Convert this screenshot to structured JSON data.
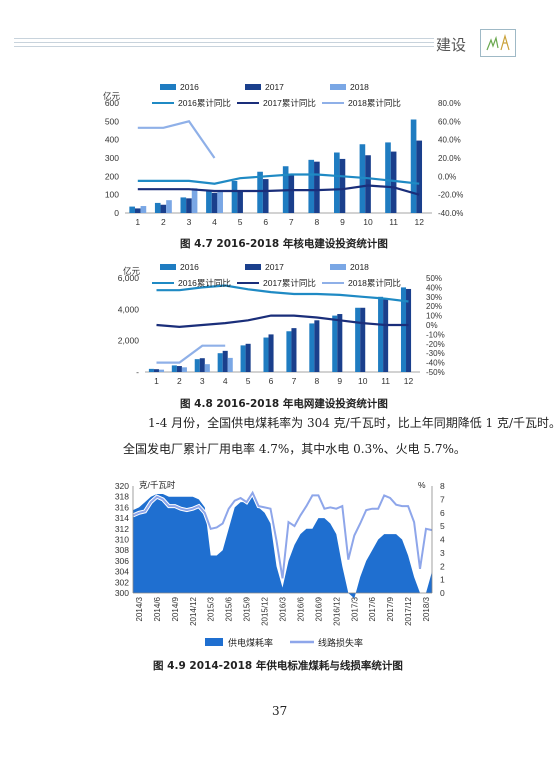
{
  "header": {
    "section_title": "建设"
  },
  "body_text": {
    "line1": "1-4 月份，全国供电煤耗率为 304 克/千瓦时，比上年同期降低 1 克/千瓦时。",
    "line2": "全国发电厂累计厂用电率 4.7%，其中水电 0.3%、火电 5.7%。"
  },
  "page_number": "37",
  "chart_data": [
    {
      "type": "bar",
      "title": "图 4.7   2016-2018 年核电建设投资统计图",
      "ylabel": "亿元",
      "categories": [
        "1",
        "2",
        "3",
        "4",
        "5",
        "6",
        "7",
        "8",
        "9",
        "10",
        "11",
        "12"
      ],
      "ylim": [
        0,
        600
      ],
      "yticks": [
        "0",
        "100",
        "200",
        "300",
        "400",
        "500",
        "600"
      ],
      "y2lim": [
        -40,
        80
      ],
      "y2ticks": [
        "-40.0%",
        "-20.0%",
        "0.0%",
        "20.0%",
        "40.0%",
        "60.0%",
        "80.0%"
      ],
      "series": [
        {
          "name": "2016",
          "kind": "bar",
          "color": "#1f7cc1",
          "values": [
            35,
            55,
            85,
            120,
            175,
            225,
            255,
            290,
            330,
            375,
            385,
            510
          ]
        },
        {
          "name": "2017",
          "kind": "bar",
          "color": "#1a3f8c",
          "values": [
            25,
            45,
            80,
            110,
            125,
            185,
            215,
            280,
            295,
            315,
            335,
            395
          ]
        },
        {
          "name": "2018",
          "kind": "bar",
          "color": "#7aa7e5",
          "values": [
            38,
            70,
            135,
            125,
            null,
            null,
            null,
            null,
            null,
            null,
            null,
            null
          ]
        },
        {
          "name": "2016累计同比",
          "kind": "line",
          "axis": "right",
          "color": "#1f8ac4",
          "values": [
            -5,
            -5,
            -5,
            -8,
            -2,
            0,
            2,
            2,
            0,
            -2,
            -5,
            -8
          ]
        },
        {
          "name": "2017累计同比",
          "kind": "line",
          "axis": "right",
          "color": "#1a2e7a",
          "values": [
            -14,
            -14,
            -14,
            -16,
            -16,
            -16,
            -15,
            -15,
            -14,
            -10,
            -12,
            -20
          ]
        },
        {
          "name": "2018累计同比",
          "kind": "line",
          "axis": "right",
          "color": "#8fb0e8",
          "values": [
            53,
            53,
            60,
            20,
            null,
            null,
            null,
            null,
            null,
            null,
            null,
            null
          ]
        }
      ]
    },
    {
      "type": "bar",
      "title": "图 4.8   2016-2018 年电网建设投资统计图",
      "ylabel": "亿元",
      "categories": [
        "1",
        "2",
        "3",
        "4",
        "5",
        "6",
        "7",
        "8",
        "9",
        "10",
        "11",
        "12"
      ],
      "ylim": [
        0,
        6000
      ],
      "yticks": [
        "-",
        "2,000",
        "4,000",
        "6,000"
      ],
      "y2lim": [
        -50,
        50
      ],
      "y2ticks": [
        "-50%",
        "-40%",
        "-30%",
        "-20%",
        "-10%",
        "0%",
        "10%",
        "20%",
        "30%",
        "40%",
        "50%"
      ],
      "series": [
        {
          "name": "2016",
          "kind": "bar",
          "color": "#1f7cc1",
          "values": [
            200,
            420,
            820,
            1200,
            1700,
            2200,
            2600,
            3100,
            3600,
            4100,
            4800,
            5400
          ]
        },
        {
          "name": "2017",
          "kind": "bar",
          "color": "#1a3f8c",
          "values": [
            180,
            380,
            880,
            1350,
            1800,
            2400,
            2800,
            3300,
            3700,
            4100,
            4700,
            5300
          ]
        },
        {
          "name": "2018",
          "kind": "bar",
          "color": "#7aa7e5",
          "values": [
            150,
            300,
            500,
            900,
            null,
            null,
            null,
            null,
            null,
            null,
            null,
            null
          ]
        },
        {
          "name": "2016累计同比",
          "kind": "line",
          "axis": "right",
          "color": "#1f8ac4",
          "values": [
            37,
            37,
            40,
            42,
            38,
            35,
            33,
            33,
            32,
            30,
            28,
            25
          ]
        },
        {
          "name": "2017累计同比",
          "kind": "line",
          "axis": "right",
          "color": "#1a2e7a",
          "values": [
            0,
            -2,
            0,
            2,
            5,
            10,
            10,
            8,
            5,
            2,
            0,
            0
          ]
        },
        {
          "name": "2018累计同比",
          "kind": "line",
          "axis": "right",
          "color": "#8fb0e8",
          "values": [
            -40,
            -40,
            -22,
            -22,
            null,
            null,
            null,
            null,
            null,
            null,
            null,
            null
          ]
        }
      ]
    },
    {
      "type": "area",
      "title": "图 4.9   2014-2018 年供电标准煤耗与线损率统计图",
      "ylabel": "克/千瓦时",
      "y2label": "%",
      "ylim": [
        300,
        320
      ],
      "yticks": [
        "300",
        "302",
        "304",
        "306",
        "308",
        "310",
        "312",
        "314",
        "316",
        "318",
        "320"
      ],
      "y2lim": [
        0,
        8
      ],
      "y2ticks": [
        "0",
        "1",
        "2",
        "3",
        "4",
        "5",
        "6",
        "7",
        "8"
      ],
      "xticks": [
        "2014/3",
        "2014/6",
        "2014/9",
        "2014/12",
        "2015/3",
        "2015/6",
        "2015/9",
        "2015/12",
        "2016/3",
        "2016/6",
        "2016/9",
        "2016/12",
        "2017/3",
        "2017/6",
        "2017/9",
        "2017/12",
        "2018/3"
      ],
      "x": [
        "2014/2",
        "2014/3",
        "2014/4",
        "2014/5",
        "2014/6",
        "2014/7",
        "2014/8",
        "2014/9",
        "2014/10",
        "2014/11",
        "2014/12",
        "2015/1",
        "2015/2",
        "2015/3",
        "2015/4",
        "2015/5",
        "2015/6",
        "2015/7",
        "2015/8",
        "2015/9",
        "2015/10",
        "2015/11",
        "2015/12",
        "2016/1",
        "2016/2",
        "2016/3",
        "2016/4",
        "2016/5",
        "2016/6",
        "2016/7",
        "2016/8",
        "2016/9",
        "2016/10",
        "2016/11",
        "2016/12",
        "2017/1",
        "2017/2",
        "2017/3",
        "2017/4",
        "2017/5",
        "2017/6",
        "2017/7",
        "2017/8",
        "2017/9",
        "2017/10",
        "2017/11",
        "2017/12",
        "2018/1",
        "2018/2",
        "2018/3",
        "2018/4"
      ],
      "series": [
        {
          "name": "供电煤耗率",
          "kind": "area",
          "color": "#1f6fd0",
          "values": [
            315.5,
            316,
            317,
            318,
            318.5,
            318.5,
            318,
            318,
            318,
            318,
            318,
            317.5,
            316,
            307,
            307,
            308,
            312,
            316,
            317,
            317,
            318,
            316,
            315,
            313,
            305,
            301,
            306,
            309,
            311,
            312,
            312,
            314,
            314,
            313,
            311,
            305,
            300,
            299,
            303,
            306,
            308,
            310,
            311,
            311,
            311,
            310,
            307,
            303,
            300,
            300,
            304
          ]
        },
        {
          "name": "线路损失率",
          "kind": "line",
          "axis": "right",
          "color": "#8ea6ea",
          "values": [
            5.8,
            6,
            6.1,
            6.8,
            7.2,
            7,
            6.5,
            6.5,
            6.3,
            6.2,
            6.3,
            6.5,
            6,
            4.8,
            4.9,
            5.2,
            6.3,
            6.9,
            7.1,
            6.8,
            7.5,
            6.5,
            6.4,
            6.3,
            3.9,
            1.1,
            5.3,
            5,
            5.8,
            6.5,
            7.3,
            7.3,
            6.3,
            6.4,
            6.3,
            6.5,
            2.5,
            4.3,
            5.2,
            6.2,
            6.3,
            6.3,
            7.3,
            7.1,
            6.6,
            6.5,
            6.5,
            5.3,
            1.8,
            4.8,
            4.7
          ]
        }
      ]
    }
  ]
}
